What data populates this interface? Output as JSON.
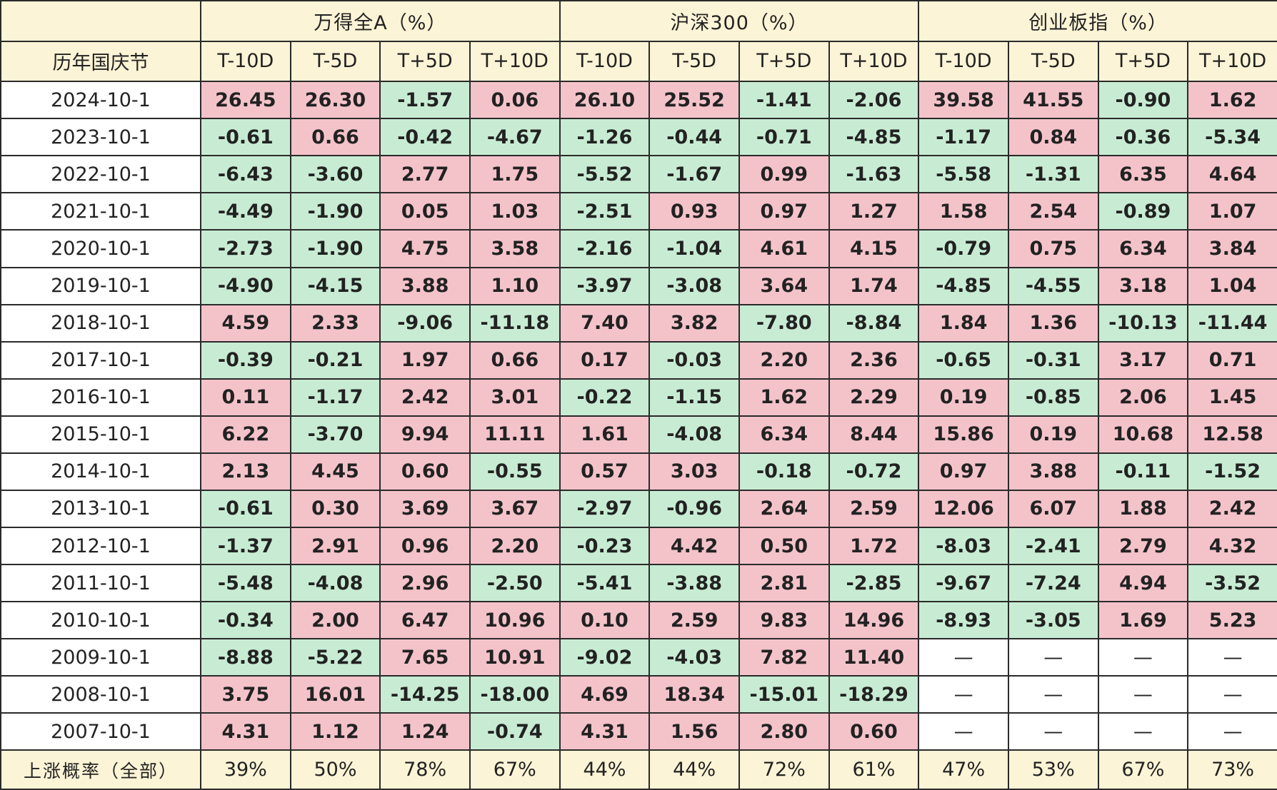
{
  "table": {
    "corner_label": "历年国庆节",
    "groups": [
      "万得全A（%）",
      "沪深300（%）",
      "创业板指（%）"
    ],
    "subheaders": [
      "T-10D",
      "T-5D",
      "T+5D",
      "T+10D"
    ],
    "rows": [
      {
        "date": "2024-10-1",
        "values": [
          "26.45",
          "26.30",
          "-1.57",
          "0.06",
          "26.10",
          "25.52",
          "-1.41",
          "-2.06",
          "39.58",
          "41.55",
          "-0.90",
          "1.62"
        ]
      },
      {
        "date": "2023-10-1",
        "values": [
          "-0.61",
          "0.66",
          "-0.42",
          "-4.67",
          "-1.26",
          "-0.44",
          "-0.71",
          "-4.85",
          "-1.17",
          "0.84",
          "-0.36",
          "-5.34"
        ]
      },
      {
        "date": "2022-10-1",
        "values": [
          "-6.43",
          "-3.60",
          "2.77",
          "1.75",
          "-5.52",
          "-1.67",
          "0.99",
          "-1.63",
          "-5.58",
          "-1.31",
          "6.35",
          "4.64"
        ]
      },
      {
        "date": "2021-10-1",
        "values": [
          "-4.49",
          "-1.90",
          "0.05",
          "1.03",
          "-2.51",
          "0.93",
          "0.97",
          "1.27",
          "1.58",
          "2.54",
          "-0.89",
          "1.07"
        ]
      },
      {
        "date": "2020-10-1",
        "values": [
          "-2.73",
          "-1.90",
          "4.75",
          "3.58",
          "-2.16",
          "-1.04",
          "4.61",
          "4.15",
          "-0.79",
          "0.75",
          "6.34",
          "3.84"
        ]
      },
      {
        "date": "2019-10-1",
        "values": [
          "-4.90",
          "-4.15",
          "3.88",
          "1.10",
          "-3.97",
          "-3.08",
          "3.64",
          "1.74",
          "-4.85",
          "-4.55",
          "3.18",
          "1.04"
        ]
      },
      {
        "date": "2018-10-1",
        "values": [
          "4.59",
          "2.33",
          "-9.06",
          "-11.18",
          "7.40",
          "3.82",
          "-7.80",
          "-8.84",
          "1.84",
          "1.36",
          "-10.13",
          "-11.44"
        ]
      },
      {
        "date": "2017-10-1",
        "values": [
          "-0.39",
          "-0.21",
          "1.97",
          "0.66",
          "0.17",
          "-0.03",
          "2.20",
          "2.36",
          "-0.65",
          "-0.31",
          "3.17",
          "0.71"
        ]
      },
      {
        "date": "2016-10-1",
        "values": [
          "0.11",
          "-1.17",
          "2.42",
          "3.01",
          "-0.22",
          "-1.15",
          "1.62",
          "2.29",
          "0.19",
          "-0.85",
          "2.06",
          "1.45"
        ]
      },
      {
        "date": "2015-10-1",
        "values": [
          "6.22",
          "-3.70",
          "9.94",
          "11.11",
          "1.61",
          "-4.08",
          "6.34",
          "8.44",
          "15.86",
          "0.19",
          "10.68",
          "12.58"
        ]
      },
      {
        "date": "2014-10-1",
        "values": [
          "2.13",
          "4.45",
          "0.60",
          "-0.55",
          "0.57",
          "3.03",
          "-0.18",
          "-0.72",
          "0.97",
          "3.88",
          "-0.11",
          "-1.52"
        ]
      },
      {
        "date": "2013-10-1",
        "values": [
          "-0.61",
          "0.30",
          "3.69",
          "3.67",
          "-2.97",
          "-0.96",
          "2.64",
          "2.59",
          "12.06",
          "6.07",
          "1.88",
          "2.42"
        ]
      },
      {
        "date": "2012-10-1",
        "values": [
          "-1.37",
          "2.91",
          "0.96",
          "2.20",
          "-0.23",
          "4.42",
          "0.50",
          "1.72",
          "-8.03",
          "-2.41",
          "2.79",
          "4.32"
        ]
      },
      {
        "date": "2011-10-1",
        "values": [
          "-5.48",
          "-4.08",
          "2.96",
          "-2.50",
          "-5.41",
          "-3.88",
          "2.81",
          "-2.85",
          "-9.67",
          "-7.24",
          "4.94",
          "-3.52"
        ]
      },
      {
        "date": "2010-10-1",
        "values": [
          "-0.34",
          "2.00",
          "6.47",
          "10.96",
          "0.10",
          "2.59",
          "9.83",
          "14.96",
          "-8.93",
          "-3.05",
          "1.69",
          "5.23"
        ]
      },
      {
        "date": "2009-10-1",
        "values": [
          "-8.88",
          "-5.22",
          "7.65",
          "10.91",
          "-9.02",
          "-4.03",
          "7.82",
          "11.40",
          "—",
          "—",
          "—",
          "—"
        ]
      },
      {
        "date": "2008-10-1",
        "values": [
          "3.75",
          "16.01",
          "-14.25",
          "-18.00",
          "4.69",
          "18.34",
          "-15.01",
          "-18.29",
          "—",
          "—",
          "—",
          "—"
        ]
      },
      {
        "date": "2007-10-1",
        "values": [
          "4.31",
          "1.12",
          "1.24",
          "-0.74",
          "4.31",
          "1.56",
          "2.80",
          "0.60",
          "—",
          "—",
          "—",
          "—"
        ]
      }
    ],
    "probability": {
      "label": "上涨概率（全部）",
      "values": [
        "39%",
        "50%",
        "78%",
        "67%",
        "44%",
        "44%",
        "72%",
        "61%",
        "47%",
        "53%",
        "67%",
        "73%"
      ]
    }
  },
  "colors": {
    "header_background": "#fcf4d6",
    "positive_background": "#f4c3ca",
    "positive_text": "#a01520",
    "negative_background": "#c8ecd3",
    "negative_text": "#0f5a1f",
    "border": "#2a2a2a"
  }
}
